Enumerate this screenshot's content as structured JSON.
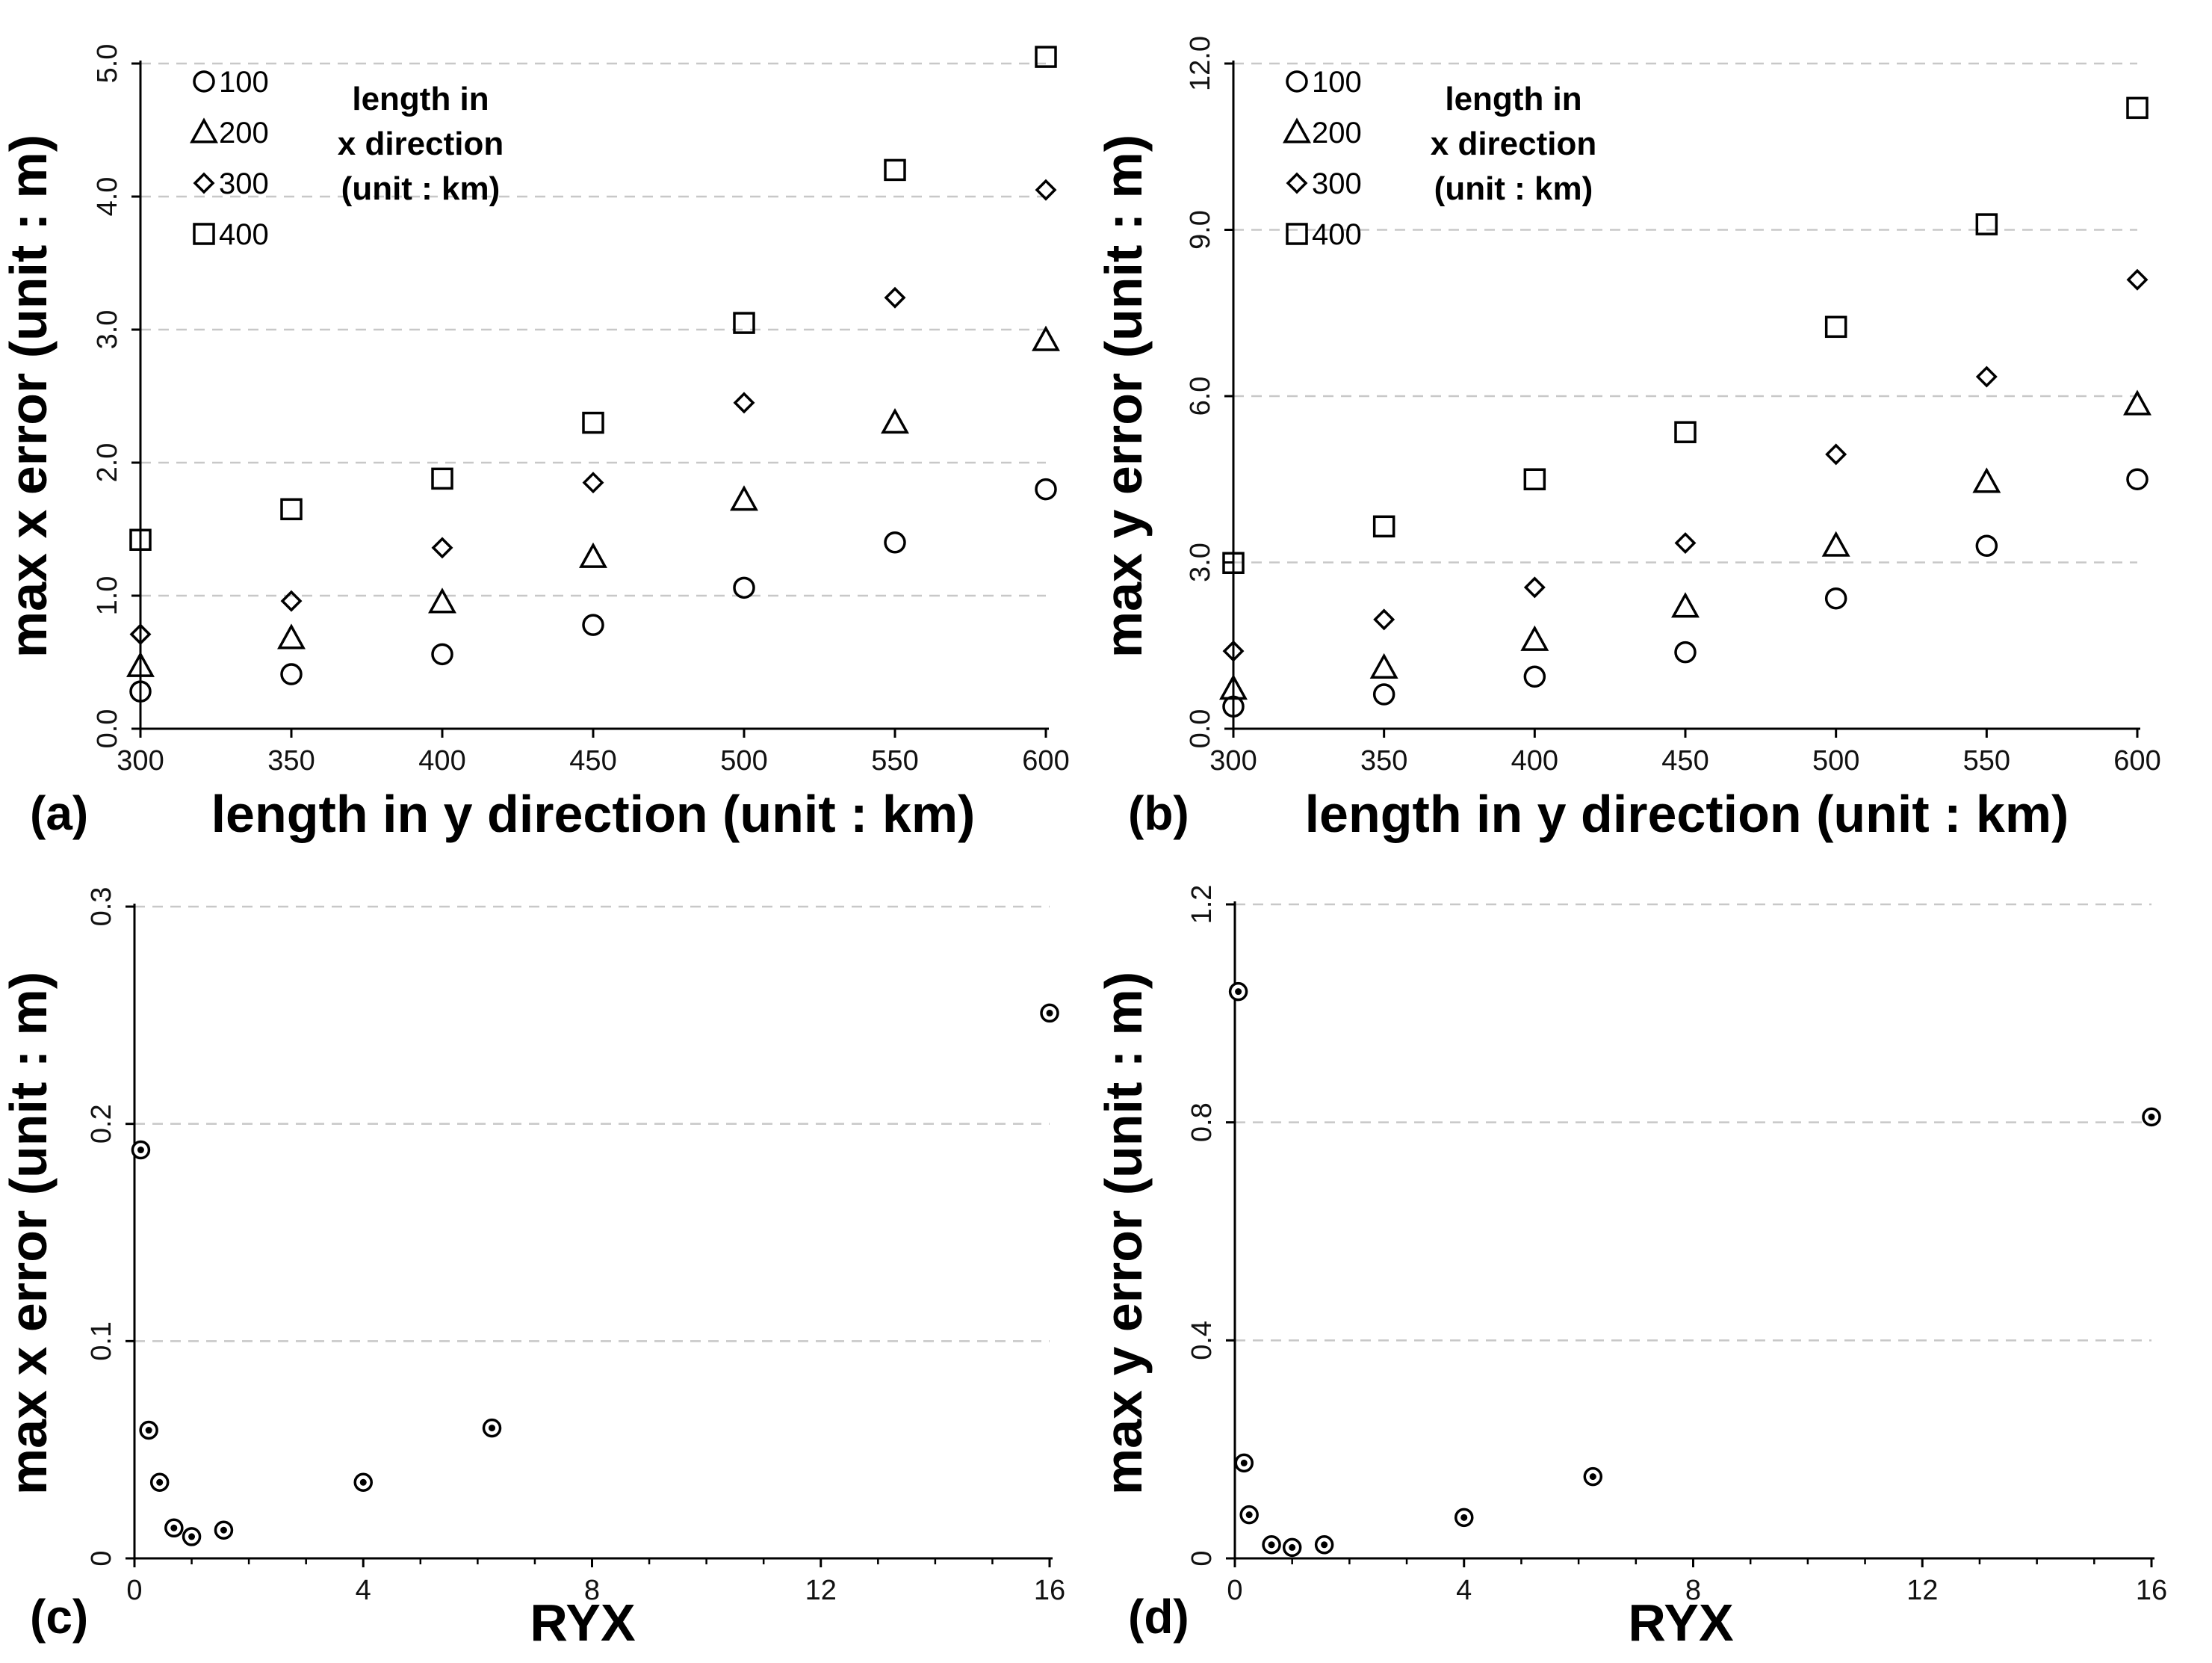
{
  "chart_data": [
    {
      "panel": "(a)",
      "type": "scatter",
      "xlabel": "length in y direction (unit : km)",
      "ylabel": "max x error (unit : m)",
      "xlim": [
        300,
        600
      ],
      "ylim": [
        0,
        5
      ],
      "xticks": [
        "300",
        "350",
        "400",
        "450",
        "500",
        "550",
        "600"
      ],
      "yticks": [
        "0.0",
        "1.0",
        "2.0",
        "3.0",
        "4.0",
        "5.0"
      ],
      "grid": "horizontal dashed",
      "legend_title": [
        "length in",
        "x direction",
        "(unit : km)"
      ],
      "legend_position": "top-left",
      "x": [
        300,
        350,
        400,
        450,
        500,
        550,
        600
      ],
      "series": [
        {
          "name": "100",
          "marker": "circle",
          "values": [
            0.28,
            0.41,
            0.56,
            0.78,
            1.06,
            1.4,
            1.8
          ]
        },
        {
          "name": "200",
          "marker": "triangle",
          "values": [
            0.47,
            0.68,
            0.95,
            1.29,
            1.72,
            2.3,
            2.92
          ]
        },
        {
          "name": "300",
          "marker": "diamond",
          "values": [
            0.71,
            0.96,
            1.36,
            1.85,
            2.45,
            3.24,
            4.05
          ]
        },
        {
          "name": "400",
          "marker": "square",
          "values": [
            1.42,
            1.65,
            1.88,
            2.3,
            3.05,
            4.2,
            5.05
          ]
        }
      ]
    },
    {
      "panel": "(b)",
      "type": "scatter",
      "xlabel": "length in y direction (unit : km)",
      "ylabel": "max y error (unit : m)",
      "xlim": [
        300,
        600
      ],
      "ylim": [
        0,
        12
      ],
      "xticks": [
        "300",
        "350",
        "400",
        "450",
        "500",
        "550",
        "600"
      ],
      "yticks": [
        "0.0",
        "3.0",
        "6.0",
        "9.0",
        "12.0"
      ],
      "grid": "horizontal dashed",
      "legend_title": [
        "length in",
        "x direction",
        "(unit : km)"
      ],
      "legend_position": "top-left",
      "x": [
        300,
        350,
        400,
        450,
        500,
        550,
        600
      ],
      "series": [
        {
          "name": "100",
          "marker": "circle",
          "values": [
            0.4,
            0.62,
            0.94,
            1.38,
            2.35,
            3.3,
            4.5
          ]
        },
        {
          "name": "200",
          "marker": "triangle",
          "values": [
            0.72,
            1.1,
            1.6,
            2.2,
            3.3,
            4.45,
            5.85
          ]
        },
        {
          "name": "300",
          "marker": "diamond",
          "values": [
            1.4,
            1.97,
            2.55,
            3.35,
            4.95,
            6.35,
            8.1
          ]
        },
        {
          "name": "400",
          "marker": "square",
          "values": [
            2.99,
            3.65,
            4.5,
            5.35,
            7.25,
            9.1,
            11.2
          ]
        }
      ]
    },
    {
      "panel": "(c)",
      "type": "scatter",
      "xlabel": "RYX",
      "ylabel": "max x error (unit : m)",
      "xlim": [
        0,
        16
      ],
      "ylim": [
        0,
        0.3
      ],
      "xticks": [
        "0",
        "4",
        "8",
        "12",
        "16"
      ],
      "yticks": [
        "0",
        "0.1",
        "0.2",
        "0.3"
      ],
      "grid": "horizontal dashed",
      "marker": "dotted-circle",
      "x": [
        0.11,
        0.25,
        0.44,
        0.69,
        1.0,
        1.56,
        4.0,
        6.25,
        16.0
      ],
      "values": [
        0.188,
        0.059,
        0.035,
        0.014,
        0.01,
        0.013,
        0.035,
        0.06,
        0.251
      ]
    },
    {
      "panel": "(d)",
      "type": "scatter",
      "xlabel": "RYX",
      "ylabel": "max y error (unit : m)",
      "xlim": [
        0,
        16
      ],
      "ylim": [
        0,
        1.2
      ],
      "xticks": [
        "0",
        "4",
        "8",
        "12",
        "16"
      ],
      "yticks": [
        "0",
        "0.4",
        "0.8",
        "1.2"
      ],
      "grid": "horizontal dashed",
      "marker": "dotted-circle",
      "x": [
        0.06,
        0.16,
        0.25,
        0.64,
        1.0,
        1.56,
        4.0,
        6.25,
        16.0
      ],
      "values": [
        1.04,
        0.175,
        0.08,
        0.025,
        0.02,
        0.025,
        0.075,
        0.15,
        0.81
      ]
    }
  ]
}
